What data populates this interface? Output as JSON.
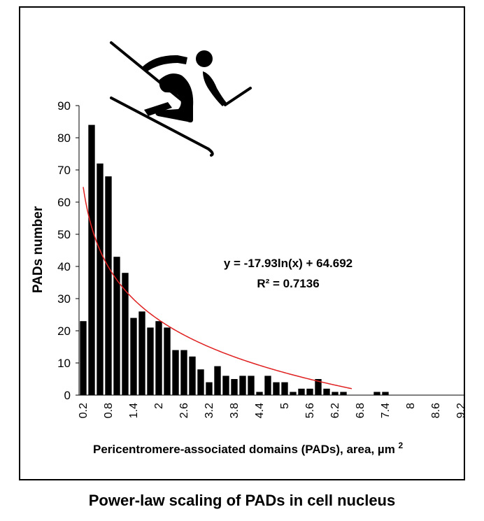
{
  "caption": "Power-law scaling of PADs in cell nucleus",
  "chart_data": {
    "type": "bar",
    "title": "",
    "xlabel_main": "Pericentromere-associated domains (PADs), area, µm",
    "xlabel_superscript": "2",
    "ylabel": "PADs number",
    "ylim": [
      0,
      90
    ],
    "yticks": [
      0,
      10,
      20,
      30,
      40,
      50,
      60,
      70,
      80,
      90
    ],
    "grid": false,
    "categories": [
      "0.2",
      "0.4",
      "0.6",
      "0.8",
      "1",
      "1.2",
      "1.4",
      "1.6",
      "1.8",
      "2",
      "2.2",
      "2.4",
      "2.6",
      "2.8",
      "3",
      "3.2",
      "3.4",
      "3.6",
      "3.8",
      "4",
      "4.2",
      "4.4",
      "4.6",
      "4.8",
      "5",
      "5.2",
      "5.4",
      "5.6",
      "5.8",
      "6",
      "6.2",
      "6.4",
      "6.6",
      "6.8",
      "7",
      "7.2",
      "7.4",
      "7.6",
      "7.8",
      "8",
      "8.2",
      "8.4",
      "8.6",
      "8.8",
      "9",
      "9.2"
    ],
    "tick_labels": [
      "0.2",
      "0.8",
      "1.4",
      "2",
      "2.6",
      "3.2",
      "3.8",
      "4.4",
      "5",
      "5.6",
      "6.2",
      "6.8",
      "7.4",
      "8",
      "8.6",
      "9.2"
    ],
    "values": [
      23,
      84,
      72,
      68,
      43,
      38,
      24,
      26,
      21,
      23,
      21,
      14,
      14,
      12,
      8,
      4,
      9,
      6,
      5,
      6,
      6,
      1,
      6,
      4,
      4,
      1,
      2,
      2,
      5,
      2,
      1,
      1,
      0,
      0,
      0,
      1,
      1,
      0,
      0,
      0,
      0,
      0,
      0,
      0,
      0,
      0
    ],
    "series_color": "#000000",
    "trendline": {
      "type": "logarithmic",
      "a": -17.93,
      "b": 64.692,
      "color": "#e02020",
      "equation_text": "y = -17.93ln(x) + 64.692",
      "r2_text": "R² = 0.7136"
    }
  },
  "icons": {
    "skier": "skier-icon"
  }
}
